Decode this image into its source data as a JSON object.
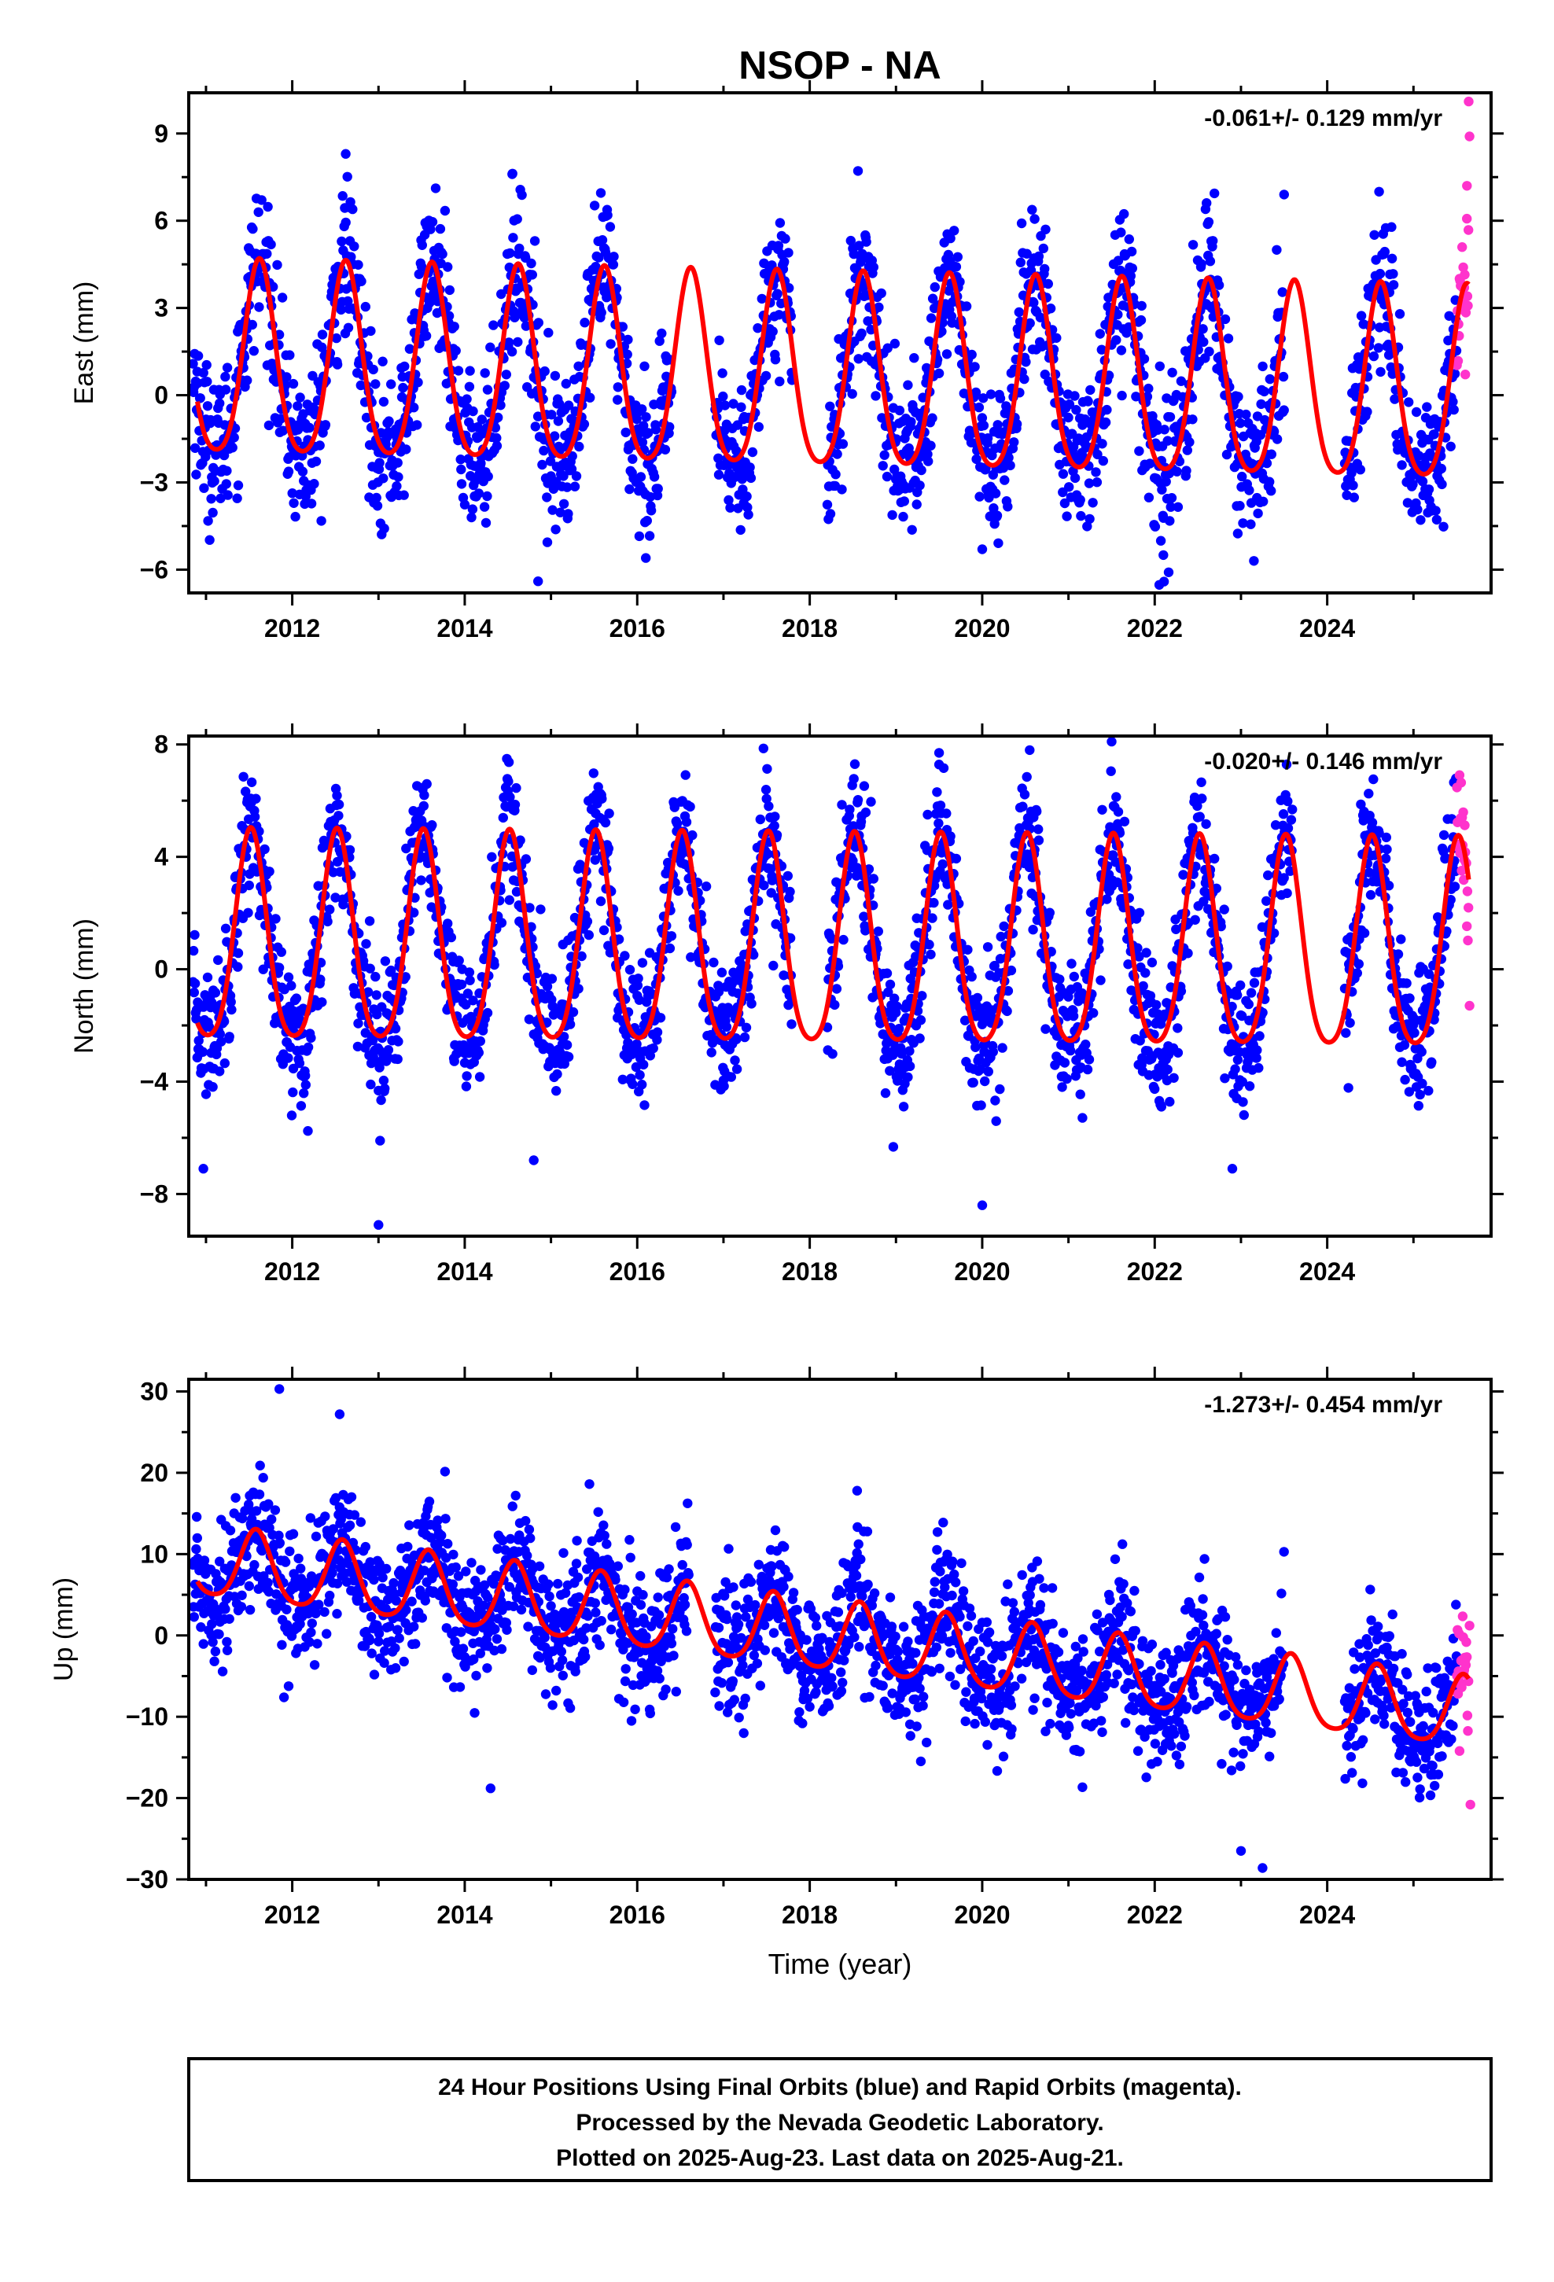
{
  "title": "NSOP - NA",
  "colors": {
    "final_orbits": "#0000ff",
    "rapid_orbits": "#ff33cc",
    "model": "#ff0000",
    "frame": "#000000"
  },
  "xlabel": "Time (year)",
  "footer": {
    "line1": "24 Hour Positions Using Final Orbits (blue) and Rapid Orbits (magenta).",
    "line2": "Processed by the Nevada Geodetic Laboratory.",
    "line3": "Plotted on 2025-Aug-23. Last data on 2025-Aug-21."
  },
  "chart_data": [
    {
      "type": "scatter",
      "id": "east",
      "ylabel": "East (mm)",
      "rate": "-0.061+/- 0.129 mm/yr",
      "xlim": [
        2010.8,
        2025.9
      ],
      "ylim": [
        -6.8,
        10.4
      ],
      "xticks": [
        2012,
        2014,
        2016,
        2018,
        2020,
        2022,
        2024
      ],
      "yticks": [
        -6,
        -3,
        0,
        3,
        6,
        9
      ],
      "data_start": 2010.85,
      "data_end": 2025.64,
      "rapid_start": 2025.5,
      "model": {
        "offset": 0.9,
        "trend": -0.061,
        "amplitude": 3.3,
        "peak_phase": 0.62
      },
      "scatter_sd": 1.3,
      "gaps": [
        [
          2016.4,
          2016.9
        ],
        [
          2017.8,
          2018.2
        ],
        [
          2023.5,
          2024.2
        ]
      ],
      "outliers": [
        [
          2012.62,
          8.3
        ],
        [
          2014.55,
          7.6
        ],
        [
          2023.5,
          6.9
        ],
        [
          2014.85,
          -6.4
        ],
        [
          2016.1,
          -5.6
        ],
        [
          2020.0,
          -5.3
        ],
        [
          2022.1,
          -5.5
        ],
        [
          2023.15,
          -5.7
        ],
        [
          2025.64,
          10.1
        ],
        [
          2025.65,
          8.9
        ],
        [
          2025.62,
          7.2
        ]
      ]
    },
    {
      "type": "scatter",
      "id": "north",
      "ylabel": "North (mm)",
      "rate": "-0.020+/- 0.146 mm/yr",
      "xlim": [
        2010.8,
        2025.9
      ],
      "ylim": [
        -9.5,
        8.3
      ],
      "xticks": [
        2012,
        2014,
        2016,
        2018,
        2020,
        2022,
        2024
      ],
      "yticks": [
        -8,
        -4,
        0,
        4,
        8
      ],
      "data_start": 2010.85,
      "data_end": 2025.64,
      "rapid_start": 2025.5,
      "model": {
        "offset": 0.75,
        "trend": -0.02,
        "amplitude": 3.7,
        "peak_phase": 0.52
      },
      "scatter_sd": 1.2,
      "gaps": [
        [
          2017.8,
          2018.2
        ],
        [
          2023.6,
          2024.2
        ]
      ],
      "outliers": [
        [
          2013.0,
          -9.1
        ],
        [
          2020.0,
          -8.4
        ],
        [
          2014.8,
          -6.8
        ],
        [
          2022.9,
          -7.1
        ],
        [
          2021.5,
          8.1
        ],
        [
          2019.5,
          7.7
        ],
        [
          2020.55,
          7.8
        ],
        [
          2010.97,
          -7.1
        ],
        [
          2025.65,
          -1.3
        ]
      ]
    },
    {
      "type": "scatter",
      "id": "up",
      "ylabel": "Up (mm)",
      "rate": "-1.273+/- 0.454 mm/yr",
      "xlim": [
        2010.8,
        2025.9
      ],
      "ylim": [
        -30,
        31.5
      ],
      "xticks": [
        2012,
        2014,
        2016,
        2018,
        2020,
        2022,
        2024
      ],
      "yticks": [
        -30,
        -20,
        -10,
        0,
        10,
        20,
        30
      ],
      "data_start": 2010.85,
      "data_end": 2025.64,
      "rapid_start": 2025.5,
      "model": {
        "offset": 8.8,
        "trend": -1.273,
        "amplitude": 4.3,
        "peak_phase": 0.58
      },
      "scatter_sd": 4.0,
      "gaps": [
        [
          2016.6,
          2016.9
        ],
        [
          2023.5,
          2024.2
        ]
      ],
      "outliers": [
        [
          2011.85,
          30.3
        ],
        [
          2012.55,
          27.2
        ],
        [
          2014.3,
          -18.8
        ],
        [
          2023.0,
          -26.5
        ],
        [
          2023.25,
          -28.6
        ],
        [
          2025.66,
          -20.8
        ],
        [
          2018.55,
          17.8
        ],
        [
          2025.65,
          1.2
        ]
      ]
    }
  ]
}
